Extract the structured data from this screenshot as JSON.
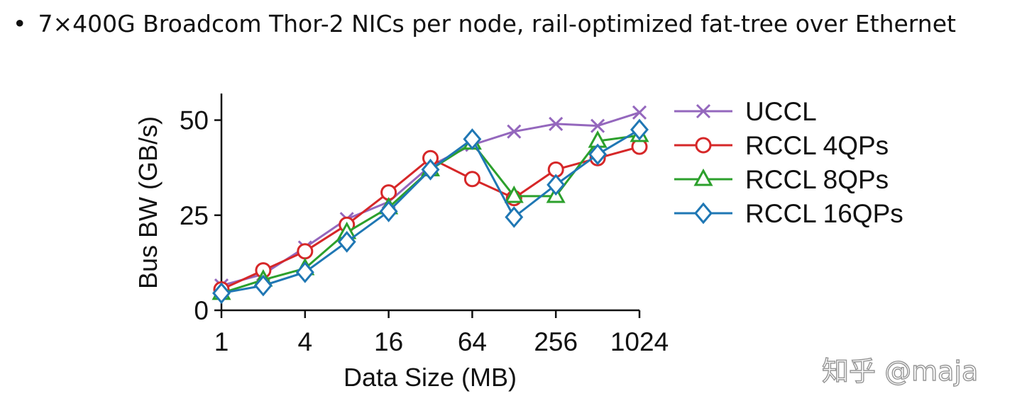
{
  "header": {
    "bullet": "•",
    "text": "7×400G Broadcom Thor-2 NICs per node, rail-optimized fat-tree over Ethernet"
  },
  "watermark": "知乎 @maja",
  "chart_data": {
    "type": "line",
    "title": "",
    "xlabel": "Data Size (MB)",
    "ylabel": "Bus BW (GB/s)",
    "x_scale": "log2",
    "x": [
      1,
      2,
      4,
      8,
      16,
      32,
      64,
      128,
      256,
      512,
      1024
    ],
    "x_ticks": [
      1,
      4,
      16,
      64,
      256,
      1024
    ],
    "x_tick_labels": [
      "1",
      "4",
      "16",
      "64",
      "256",
      "1024"
    ],
    "y_ticks": [
      0,
      25,
      50
    ],
    "y_tick_labels": [
      "0",
      "25",
      "50"
    ],
    "xlim": [
      1,
      1024
    ],
    "ylim": [
      0,
      57
    ],
    "grid": false,
    "legend_position": "right",
    "series": [
      {
        "name": "UCCL",
        "color": "#9467bd",
        "marker": "x",
        "values": [
          6.5,
          9.5,
          16.5,
          24,
          28.5,
          38,
          43.5,
          47,
          49,
          48.5,
          52
        ]
      },
      {
        "name": "RCCL 4QPs",
        "color": "#d62728",
        "marker": "circle",
        "values": [
          5.5,
          10.5,
          15.5,
          22.5,
          31,
          40,
          34.5,
          29.5,
          37,
          40,
          43
        ]
      },
      {
        "name": "RCCL 8QPs",
        "color": "#2ca02c",
        "marker": "triangle",
        "values": [
          4.5,
          8,
          11,
          20.5,
          27,
          37,
          44,
          30,
          30,
          44.5,
          46
        ]
      },
      {
        "name": "RCCL 16QPs",
        "color": "#1f77b4",
        "marker": "diamond",
        "values": [
          4.5,
          6.5,
          10,
          18,
          26,
          37,
          45,
          24.5,
          33,
          41,
          47.5
        ]
      }
    ]
  }
}
